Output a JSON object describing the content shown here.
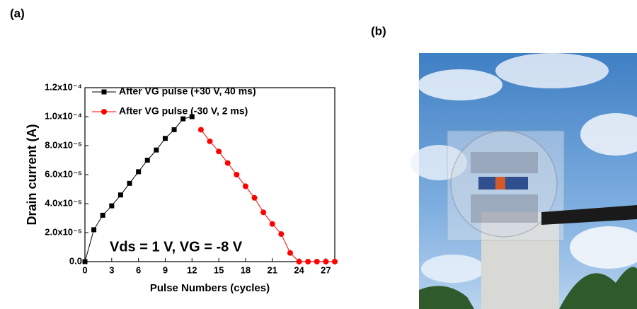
{
  "chart_data": {
    "type": "line",
    "panel_a_label": "(a)",
    "panel_b_label": "(b)",
    "x_label": "Pulse Numbers (cycles)",
    "y_label": "Drain current (A)",
    "annotation": "Vds = 1 V, VG = -8 V",
    "xlim": [
      0,
      28
    ],
    "xticks": [
      0,
      3,
      6,
      9,
      12,
      15,
      18,
      21,
      24,
      27
    ],
    "ylim": [
      0,
      0.00012
    ],
    "yticks": [
      {
        "value": 0,
        "label": "0.0"
      },
      {
        "value": 2e-05,
        "label": "2.0x10⁻⁵"
      },
      {
        "value": 4e-05,
        "label": "4.0x10⁻⁵"
      },
      {
        "value": 6e-05,
        "label": "6.0x10⁻⁵"
      },
      {
        "value": 8e-05,
        "label": "8.0x10⁻⁵"
      },
      {
        "value": 0.0001,
        "label": "1.0x10⁻⁴"
      },
      {
        "value": 0.00012,
        "label": "1.2x10⁻⁴"
      }
    ],
    "legend": "upper left",
    "series": [
      {
        "name": "After VG pulse (+30 V, 40 ms)",
        "color": "#000000",
        "marker": "square",
        "x": [
          0,
          1,
          2,
          3,
          4,
          5,
          6,
          7,
          8,
          9,
          10,
          11,
          12
        ],
        "values": [
          0,
          2.2e-05,
          3.2e-05,
          3.85e-05,
          4.6e-05,
          5.4e-05,
          6.2e-05,
          7e-05,
          7.7e-05,
          8.5e-05,
          9.1e-05,
          9.85e-05,
          0.0001
        ]
      },
      {
        "name": "After VG pulse (-30 V,  2 ms)",
        "color": "#ff0000",
        "marker": "circle",
        "x": [
          13,
          14,
          15,
          16,
          17,
          18,
          19,
          20,
          21,
          22,
          23,
          24,
          25,
          26,
          27,
          28
        ],
        "values": [
          9.1e-05,
          8.3e-05,
          7.6e-05,
          6.8e-05,
          6e-05,
          5.2e-05,
          4.4e-05,
          3.4e-05,
          2.6e-05,
          1.9e-05,
          6e-06,
          0,
          0,
          0,
          0,
          0
        ]
      }
    ]
  }
}
